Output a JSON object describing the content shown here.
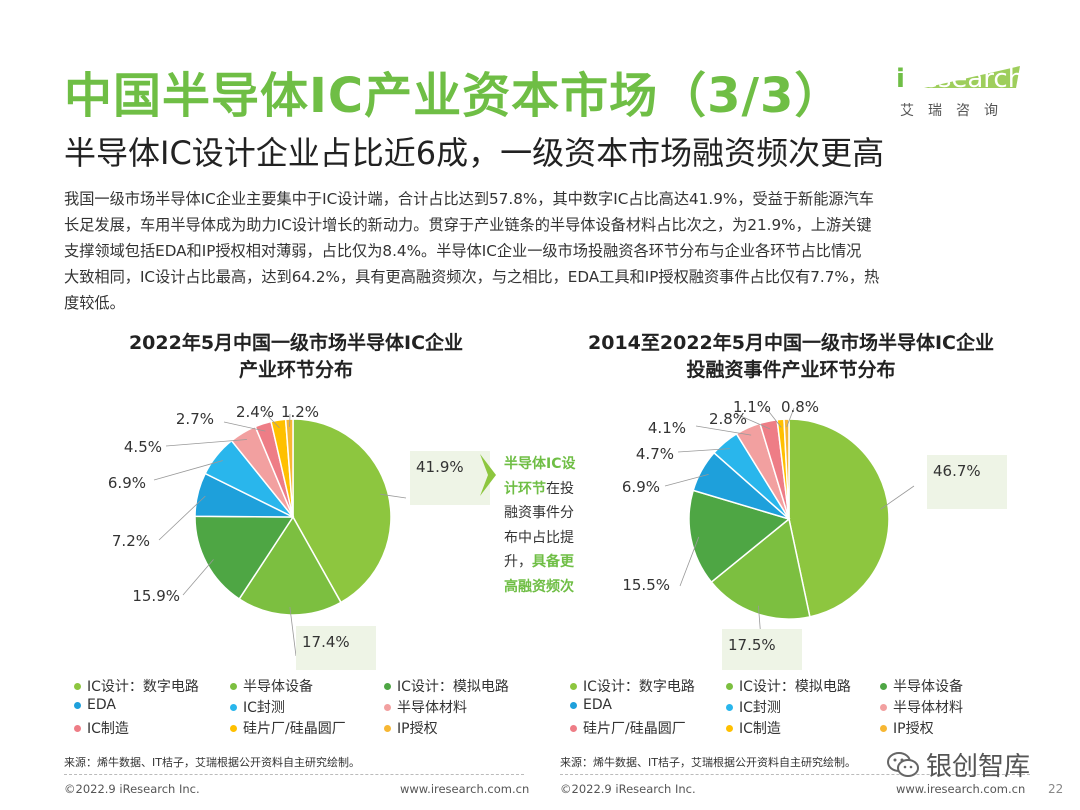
{
  "title": "中国半导体IC产业资本市场（3/3）",
  "subtitle": "半导体IC设计企业占比近6成，一级资本市场融资频次更高",
  "logo": {
    "word_i": "i",
    "word_rest": "Research",
    "cn": "艾瑞咨询"
  },
  "paragraph": [
    "我国一级市场半导体IC企业主要集中于IC设计端，合计占比达到57.8%，其中数字IC占比高达41.9%，受益于新能源汽车",
    "长足发展，车用半导体成为助力IC设计增长的新动力。贯穿于产业链条的半导体设备材料占比次之，为21.9%，上游关键",
    "支撑领域包括EDA和IP授权相对薄弱，占比仅为8.4%。半导体IC企业一级市场投融资各环节分布与企业各环节占比情况",
    "大致相同，IC设计占比最高，达到64.2%，具有更高融资频次，与之相比，EDA工具和IP授权融资事件占比仅有7.7%，热",
    "度较低。"
  ],
  "callout": {
    "line1": "半导体IC设",
    "line2_hl": "计环节",
    "line2_rest": "在投",
    "line3": "融资事件分",
    "line4": "布中占比提",
    "line5_rest": "升，",
    "line5_hl": "具备更",
    "line6": "高融资频次"
  },
  "colors": {
    "green_title": "#6fbe45",
    "ic_digital": "#8dc63f",
    "semi_equipment": "#6ab43a",
    "ic_analog": "#3f9a3f",
    "eda": "#1aa6e0",
    "ic_test": "#1fb7ef",
    "semi_material": "#f29b9b",
    "ic_manufacture": "#f08080",
    "wafer": "#ffc000",
    "ip": "#f5a623"
  },
  "chart_data": [
    {
      "type": "pie",
      "title_lines": [
        "2022年5月中国一级市场半导体IC企业",
        "产业环节分布"
      ],
      "slices": [
        {
          "name": "IC设计：数字电路",
          "value": 41.9,
          "label": "41.9%",
          "color": "#8dc63f"
        },
        {
          "name": "半导体设备",
          "value": 17.4,
          "label": "17.4%",
          "color": "#7cbf40"
        },
        {
          "name": "IC设计：模拟电路",
          "value": 15.9,
          "label": "15.9%",
          "color": "#4ea644"
        },
        {
          "name": "EDA",
          "value": 7.2,
          "label": "7.2%",
          "color": "#1ea0db"
        },
        {
          "name": "IC封测",
          "value": 6.9,
          "label": "6.9%",
          "color": "#29b6ec"
        },
        {
          "name": "半导体材料",
          "value": 4.5,
          "label": "4.5%",
          "color": "#f2a0a0"
        },
        {
          "name": "IC制造",
          "value": 2.7,
          "label": "2.7%",
          "color": "#ee7d86"
        },
        {
          "name": "硅片厂/硅晶圆厂",
          "value": 2.4,
          "label": "2.4%",
          "color": "#ffc000"
        },
        {
          "name": "IP授权",
          "value": 1.2,
          "label": "1.2%",
          "color": "#f7b733"
        }
      ],
      "legend": [
        {
          "name": "IC设计：数字电路",
          "color": "#8dc63f"
        },
        {
          "name": "半导体设备",
          "color": "#7cbf40"
        },
        {
          "name": "IC设计：模拟电路",
          "color": "#4ea644"
        },
        {
          "name": "EDA",
          "color": "#1ea0db"
        },
        {
          "name": "IC封测",
          "color": "#29b6ec"
        },
        {
          "name": "半导体材料",
          "color": "#f2a0a0"
        },
        {
          "name": "IC制造",
          "color": "#ee7d86"
        },
        {
          "name": "硅片厂/硅晶圆厂",
          "color": "#ffc000"
        },
        {
          "name": "IP授权",
          "color": "#f7b733"
        }
      ],
      "source": "来源：烯牛数据、IT桔子，艾瑞根据公开资料自主研究绘制。"
    },
    {
      "type": "pie",
      "title_lines": [
        "2014至2022年5月中国一级市场半导体IC企业",
        "投融资事件产业环节分布"
      ],
      "slices": [
        {
          "name": "IC设计：数字电路",
          "value": 46.7,
          "label": "46.7%",
          "color": "#8dc63f"
        },
        {
          "name": "IC设计：模拟电路",
          "value": 17.5,
          "label": "17.5%",
          "color": "#7cbf40"
        },
        {
          "name": "半导体设备",
          "value": 15.5,
          "label": "15.5%",
          "color": "#4ea644"
        },
        {
          "name": "EDA",
          "value": 6.9,
          "label": "6.9%",
          "color": "#1ea0db"
        },
        {
          "name": "IC封测",
          "value": 4.7,
          "label": "4.7%",
          "color": "#29b6ec"
        },
        {
          "name": "半导体材料",
          "value": 4.1,
          "label": "4.1%",
          "color": "#f2a0a0"
        },
        {
          "name": "硅片厂/硅晶圆厂",
          "value": 2.8,
          "label": "2.8%",
          "color": "#ee7d86"
        },
        {
          "name": "IC制造",
          "value": 1.1,
          "label": "1.1%",
          "color": "#ffc000"
        },
        {
          "name": "IP授权",
          "value": 0.8,
          "label": "0.8%",
          "color": "#f7b733"
        }
      ],
      "legend": [
        {
          "name": "IC设计：数字电路",
          "color": "#8dc63f"
        },
        {
          "name": "IC设计：模拟电路",
          "color": "#7cbf40"
        },
        {
          "name": "半导体设备",
          "color": "#4ea644"
        },
        {
          "name": "EDA",
          "color": "#1ea0db"
        },
        {
          "name": "IC封测",
          "color": "#29b6ec"
        },
        {
          "name": "半导体材料",
          "color": "#f2a0a0"
        },
        {
          "name": "硅片厂/硅晶圆厂",
          "color": "#ee7d86"
        },
        {
          "name": "IC制造",
          "color": "#ffc000"
        },
        {
          "name": "IP授权",
          "color": "#f7b733"
        }
      ],
      "source": "来源：烯牛数据、IT桔子，艾瑞根据公开资料自主研究绘制。"
    }
  ],
  "footer": {
    "copyright_left": "©2022.9 iResearch Inc.",
    "site_left": "www.iresearch.com.cn",
    "copyright_right": "©2022.9 iResearch Inc.",
    "site_right": "www.iresearch.com.cn",
    "page": "22"
  },
  "watermark": {
    "icon": "wechat-icon",
    "text": "银创智库"
  }
}
